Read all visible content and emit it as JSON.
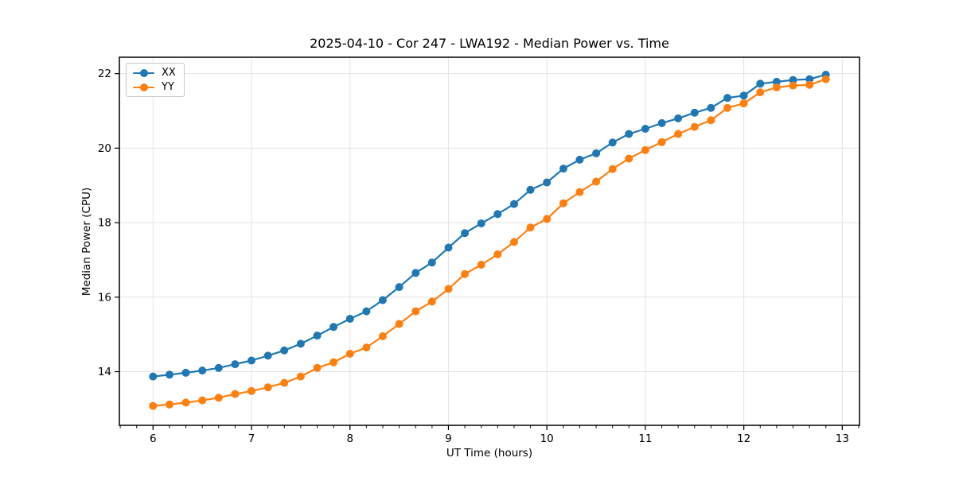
{
  "figure": {
    "background": "#ffffff",
    "spine_color": "#000000",
    "grid_color": "#e3e3e3",
    "tick_label_color": "#000000"
  },
  "chart_data": {
    "type": "line",
    "title": "2025-04-10 - Cor 247 - LWA192 - Median Power vs. Time",
    "xlabel": "UT Time (hours)",
    "ylabel": "Median Power (CPU)",
    "xlim": [
      5.658,
      13.175
    ],
    "ylim": [
      12.56,
      22.44
    ],
    "xticks": [
      6,
      7,
      8,
      9,
      10,
      11,
      12,
      13
    ],
    "yticks": [
      14,
      16,
      18,
      20,
      22
    ],
    "x_minor_tick_step_hours": 0.16667,
    "grid": true,
    "legend_position": "upper-left",
    "marker": "circle",
    "x": [
      6.0,
      6.167,
      6.333,
      6.5,
      6.667,
      6.833,
      7.0,
      7.167,
      7.333,
      7.5,
      7.667,
      7.833,
      8.0,
      8.167,
      8.333,
      8.5,
      8.667,
      8.833,
      9.0,
      9.167,
      9.333,
      9.5,
      9.667,
      9.833,
      10.0,
      10.167,
      10.333,
      10.5,
      10.667,
      10.833,
      11.0,
      11.167,
      11.333,
      11.5,
      11.667,
      11.833,
      12.0,
      12.167,
      12.333,
      12.5,
      12.667,
      12.833
    ],
    "series": [
      {
        "name": "XX",
        "color": "#1f77b4",
        "values": [
          13.87,
          13.92,
          13.97,
          14.03,
          14.1,
          14.2,
          14.3,
          14.43,
          14.57,
          14.75,
          14.97,
          15.2,
          15.42,
          15.62,
          15.92,
          16.27,
          16.65,
          16.93,
          17.33,
          17.72,
          17.98,
          18.23,
          18.5,
          18.88,
          19.08,
          19.45,
          19.69,
          19.86,
          20.15,
          20.38,
          20.52,
          20.67,
          20.8,
          20.95,
          21.08,
          21.35,
          21.41,
          21.73,
          21.78,
          21.83,
          21.85,
          21.97
        ]
      },
      {
        "name": "YY",
        "color": "#ff7f0e",
        "values": [
          13.08,
          13.12,
          13.17,
          13.23,
          13.3,
          13.4,
          13.48,
          13.58,
          13.7,
          13.87,
          14.1,
          14.25,
          14.48,
          14.65,
          14.95,
          15.28,
          15.62,
          15.88,
          16.22,
          16.62,
          16.87,
          17.15,
          17.48,
          17.87,
          18.1,
          18.52,
          18.82,
          19.1,
          19.44,
          19.72,
          19.95,
          20.16,
          20.38,
          20.57,
          20.75,
          21.08,
          21.2,
          21.5,
          21.63,
          21.68,
          21.7,
          21.85
        ]
      }
    ]
  }
}
